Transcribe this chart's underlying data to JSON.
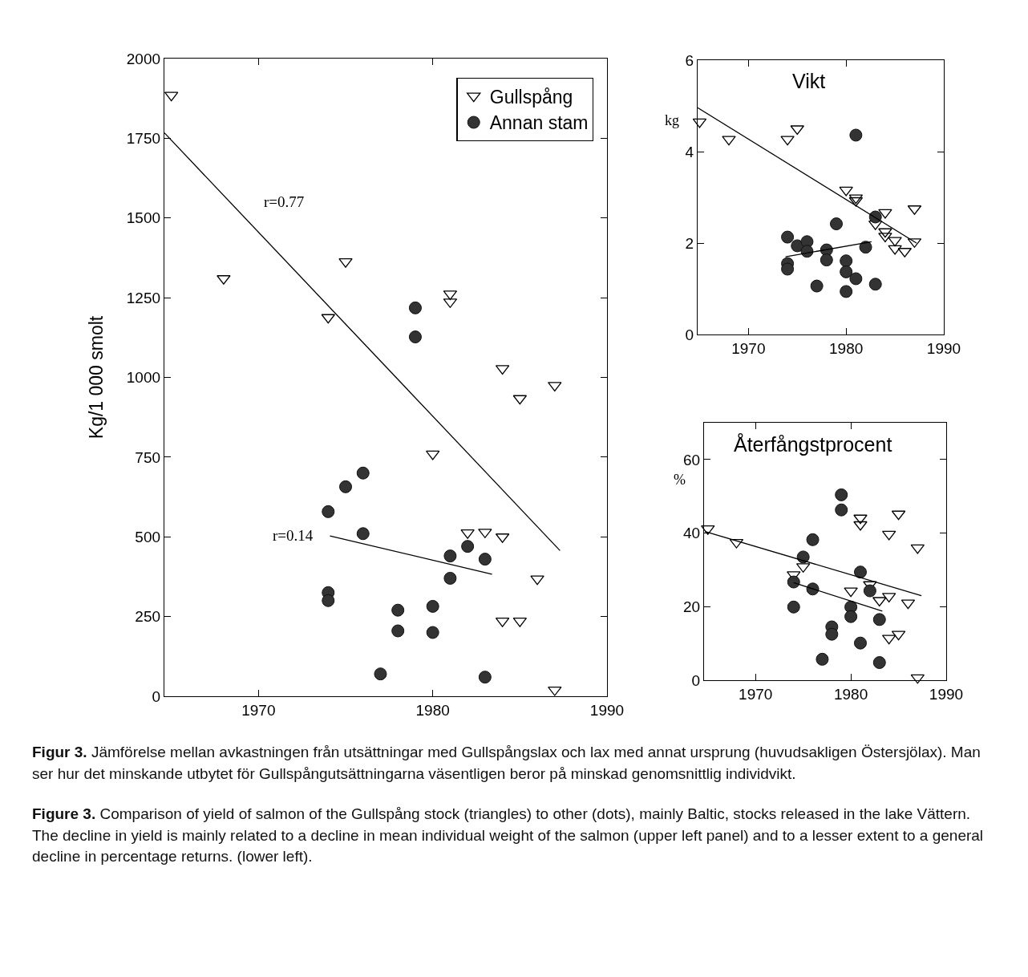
{
  "chart_data": [
    {
      "type": "scatter",
      "ylabel": "Kg/1 000 smolt",
      "xlim": [
        1964.6,
        1990
      ],
      "ylim": [
        0,
        2000
      ],
      "xticks": [
        1970,
        1980,
        1990
      ],
      "yticks": [
        0,
        250,
        500,
        750,
        1000,
        1250,
        1500,
        1750,
        2000
      ],
      "grid": false,
      "legend": "top right",
      "series": [
        {
          "name": "Gullspång",
          "color": "#000000",
          "marker": "triangle",
          "x": [
            1965,
            1968,
            1974,
            1975,
            1981,
            1981,
            1980,
            1984,
            1985,
            1987,
            1982,
            1983,
            1984,
            1986,
            1984,
            1985,
            1987
          ],
          "values": [
            1885,
            1310,
            1188,
            1363,
            1262,
            1237,
            760,
            1028,
            934,
            975,
            513,
            515,
            500,
            368,
            236,
            236,
            20
          ]
        },
        {
          "name": "Annan stam",
          "color": "#333333",
          "marker": "circle",
          "x": [
            1979,
            1979,
            1974,
            1974,
            1974,
            1975,
            1976,
            1976,
            1977,
            1978,
            1978,
            1980,
            1980,
            1981,
            1981,
            1982,
            1983,
            1983
          ],
          "values": [
            1218,
            1127,
            579,
            325,
            300,
            657,
            700,
            510,
            70,
            270,
            205,
            282,
            200,
            440,
            370,
            470,
            430,
            60
          ]
        },
        {
          "type": "line",
          "color": "#000000",
          "marker": "none",
          "x": [
            1964.6,
            1987.3
          ],
          "values": [
            1767,
            457
          ]
        },
        {
          "type": "line",
          "color": "#000000",
          "marker": "none",
          "x": [
            1974.1,
            1983.4
          ],
          "values": [
            503,
            383
          ]
        }
      ],
      "annotations": [
        "r=0.77",
        "r=0.14",
        "Figur 3. Jämförelse mellan avkastningen från utsättningar med Gullspångslax och lax med annat ursprung (huvudsakligen Östersjölax).  Man ser hur det minskande utbytet för Gullspångutsättningarna väsentligen beror på minskad genomsnittlig individvikt.",
        "Figure 3. Comparison of yield of salmon of the Gullspång stock (triangles) to other (dots), mainly Baltic, stocks released in the lake Vättern. The decline in yield is mainly related to a decline in mean individual weight of the salmon (upper left panel) and to a lesser extent to a general decline in percentage returns. (lower left)."
      ]
    },
    {
      "type": "scatter",
      "title": "Vikt",
      "ylabel": "kg",
      "xlim": [
        1964.8,
        1990
      ],
      "ylim": [
        0,
        6
      ],
      "xticks": [
        1970,
        1980,
        1990
      ],
      "yticks": [
        0,
        2,
        4,
        6
      ],
      "grid": false,
      "series": [
        {
          "color": "#000000",
          "marker": "triangle",
          "x": [
            1965,
            1968,
            1974,
            1975,
            1980,
            1981,
            1981,
            1984,
            1983,
            1984,
            1984,
            1985,
            1985,
            1986,
            1987,
            1987
          ],
          "values": [
            4.65,
            4.27,
            4.27,
            4.5,
            3.16,
            2.99,
            2.93,
            2.67,
            2.42,
            2.25,
            2.15,
            2.06,
            1.88,
            1.82,
            2.75,
            2.03
          ]
        },
        {
          "color": "#333333",
          "marker": "circle",
          "x": [
            1981,
            1983,
            1979,
            1974,
            1975,
            1976,
            1976,
            1978,
            1978,
            1974,
            1974,
            1977,
            1980,
            1980,
            1981,
            1980,
            1982,
            1983
          ],
          "values": [
            4.36,
            2.57,
            2.42,
            2.13,
            1.94,
            2.03,
            1.82,
            1.85,
            1.63,
            1.55,
            1.43,
            1.06,
            1.61,
            1.37,
            1.22,
            0.94,
            1.91,
            1.1
          ]
        },
        {
          "type": "line",
          "color": "#000000",
          "marker": "none",
          "x": [
            1964.8,
            1987.2
          ],
          "values": [
            4.96,
            2.0
          ]
        },
        {
          "type": "line",
          "color": "#000000",
          "marker": "none",
          "x": [
            1973.8,
            1982.6
          ],
          "values": [
            1.7,
            2.03
          ]
        }
      ]
    },
    {
      "type": "scatter",
      "title": "Återfångstprocent",
      "ylabel": "%",
      "xlim": [
        1964.6,
        1990
      ],
      "ylim": [
        0,
        70
      ],
      "xticks": [
        1970,
        1980,
        1990
      ],
      "yticks": [
        0,
        20,
        40,
        60
      ],
      "grid": false,
      "series": [
        {
          "color": "#000000",
          "marker": "triangle",
          "x": [
            1965,
            1968,
            1974,
            1975,
            1981,
            1981,
            1985,
            1984,
            1987,
            1980,
            1982,
            1983,
            1984,
            1986,
            1984,
            1985,
            1987
          ],
          "values": [
            41.2,
            37.5,
            28.7,
            30.9,
            44.1,
            42.3,
            45.2,
            39.7,
            36,
            24.3,
            26,
            21.7,
            22.8,
            21,
            11.4,
            12.5,
            0.7
          ]
        },
        {
          "color": "#333333",
          "marker": "circle",
          "x": [
            1979,
            1979,
            1976,
            1975,
            1974,
            1974,
            1976,
            1981,
            1982,
            1980,
            1980,
            1978,
            1978,
            1977,
            1981,
            1983,
            1983
          ],
          "values": [
            50.4,
            46.3,
            38.2,
            33.5,
            26.7,
            19.9,
            24.8,
            29.4,
            24.3,
            19.9,
            17.3,
            14.5,
            12.5,
            5.7,
            10.1,
            16.5,
            4.8
          ]
        },
        {
          "type": "line",
          "color": "#000000",
          "marker": "none",
          "x": [
            1964.7,
            1987.4
          ],
          "values": [
            40.4,
            23
          ]
        },
        {
          "type": "line",
          "color": "#000000",
          "marker": "none",
          "x": [
            1974,
            1983.3
          ],
          "values": [
            26.5,
            18.8
          ]
        }
      ]
    }
  ]
}
